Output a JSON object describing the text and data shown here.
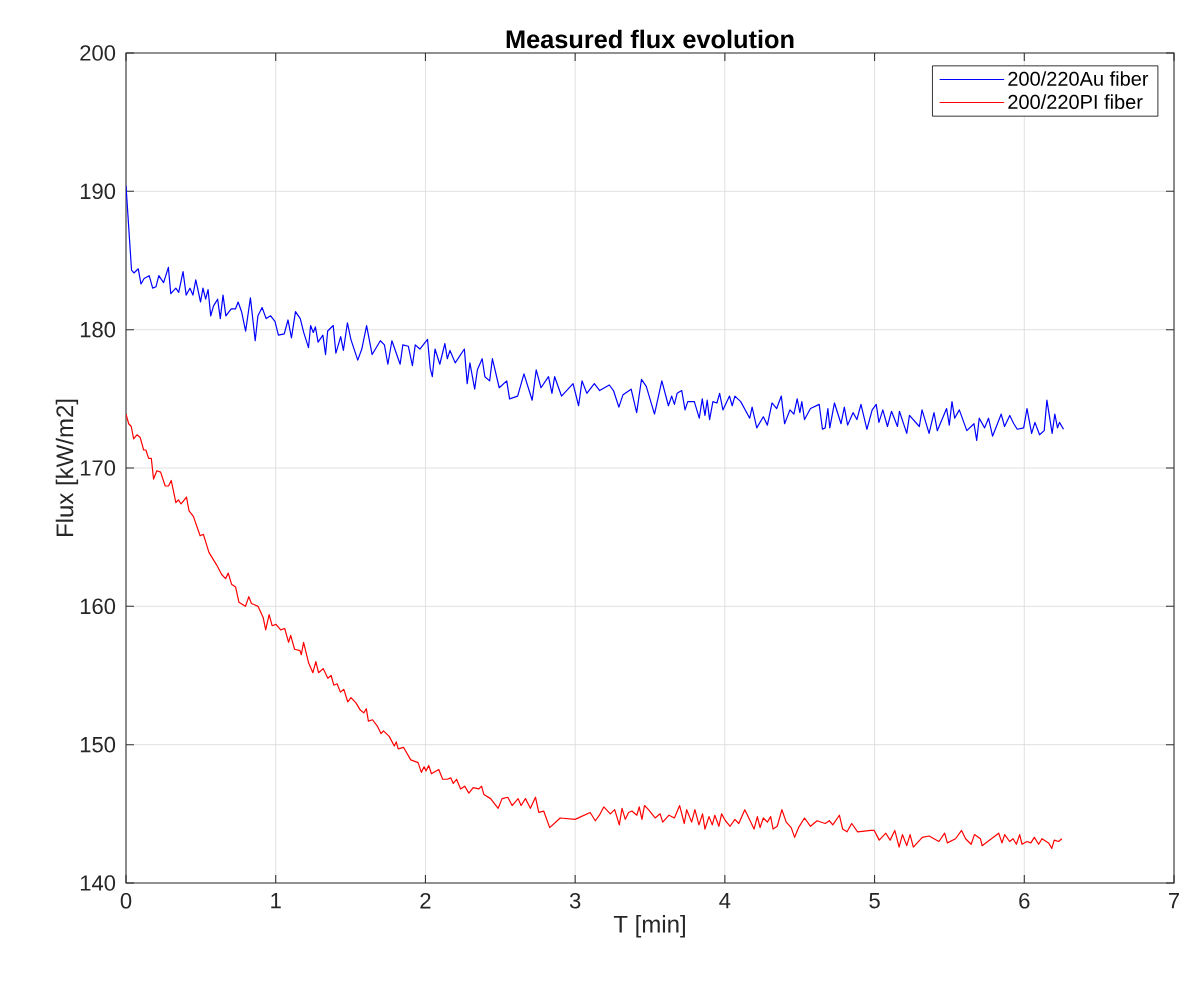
{
  "chart_data": {
    "type": "line",
    "title": "Measured flux evolution",
    "xlabel": "T [min]",
    "ylabel": "Flux [kW/m2]",
    "xlim": [
      0,
      7
    ],
    "xticks": [
      0,
      1,
      2,
      3,
      4,
      5,
      6,
      7
    ],
    "ylim": [
      140,
      200
    ],
    "yticks": [
      140,
      150,
      160,
      170,
      180,
      190,
      200
    ],
    "grid": true,
    "legend": "top right",
    "marker": "none",
    "line_style": "solid",
    "series": [
      {
        "name": "200/220Au fiber",
        "color": "#0000ff",
        "x": [
          0,
          0.037,
          0.053,
          0.082,
          0.1,
          0.121,
          0.155,
          0.178,
          0.2,
          0.219,
          0.251,
          0.283,
          0.299,
          0.333,
          0.352,
          0.381,
          0.402,
          0.427,
          0.447,
          0.466,
          0.498,
          0.514,
          0.532,
          0.548,
          0.566,
          0.584,
          0.612,
          0.63,
          0.648,
          0.667,
          0.703,
          0.731,
          0.749,
          0.772,
          0.799,
          0.831,
          0.863,
          0.881,
          0.909,
          0.936,
          0.966,
          0.995,
          1.018,
          1.057,
          1.082,
          1.105,
          1.132,
          1.164,
          1.187,
          1.219,
          1.233,
          1.251,
          1.265,
          1.283,
          1.315,
          1.333,
          1.347,
          1.384,
          1.402,
          1.434,
          1.452,
          1.479,
          1.502,
          1.548,
          1.575,
          1.607,
          1.644,
          1.699,
          1.726,
          1.749,
          1.776,
          1.831,
          1.849,
          1.886,
          1.913,
          1.932,
          1.963,
          2.014,
          2.032,
          2.046,
          2.064,
          2.096,
          2.13,
          2.146,
          2.164,
          2.199,
          2.26,
          2.279,
          2.297,
          2.329,
          2.347,
          2.379,
          2.397,
          2.429,
          2.447,
          2.493,
          2.543,
          2.562,
          2.616,
          2.658,
          2.713,
          2.74,
          2.772,
          2.822,
          2.845,
          2.863,
          2.909,
          2.986,
          3.023,
          3.046,
          3.078,
          3.128,
          3.164,
          3.228,
          3.256,
          3.292,
          3.32,
          3.374,
          3.411,
          3.443,
          3.475,
          3.53,
          3.579,
          3.623,
          3.645,
          3.663,
          3.681,
          3.712,
          3.734,
          3.752,
          3.796,
          3.829,
          3.849,
          3.867,
          3.882,
          3.898,
          3.92,
          3.947,
          3.965,
          3.987,
          4.031,
          4.049,
          4.067,
          4.106,
          4.166,
          4.182,
          4.213,
          4.257,
          4.284,
          4.315,
          4.346,
          4.377,
          4.399,
          4.435,
          4.461,
          4.483,
          4.501,
          4.514,
          4.532,
          4.572,
          4.63,
          4.652,
          4.67,
          4.688,
          4.701,
          4.732,
          4.776,
          4.798,
          4.82,
          4.856,
          4.882,
          4.909,
          4.949,
          4.984,
          5.011,
          5.029,
          5.055,
          5.086,
          5.113,
          5.153,
          5.166,
          5.215,
          5.233,
          5.299,
          5.317,
          5.364,
          5.397,
          5.419,
          5.481,
          5.499,
          5.517,
          5.535,
          5.566,
          5.616,
          5.664,
          5.682,
          5.699,
          5.735,
          5.761,
          5.788,
          5.846,
          5.868,
          5.903,
          5.93,
          5.953,
          5.996,
          6.018,
          6.049,
          6.071,
          6.102,
          6.133,
          6.151,
          6.186,
          6.204,
          6.222,
          6.235,
          6.262
        ],
        "values": [
          190.4,
          184.3,
          184.1,
          184.4,
          183.3,
          183.7,
          183.9,
          183.0,
          183.1,
          183.9,
          183.4,
          184.5,
          182.6,
          183.0,
          182.7,
          184.2,
          182.5,
          183.0,
          182.5,
          183.6,
          182.0,
          183.0,
          182.2,
          182.9,
          181.0,
          181.7,
          182.2,
          180.8,
          182.5,
          181.0,
          181.5,
          181.5,
          182.0,
          181.3,
          179.9,
          182.3,
          179.2,
          181.0,
          181.6,
          180.8,
          181.0,
          180.6,
          179.6,
          179.7,
          180.7,
          179.4,
          181.3,
          180.8,
          179.8,
          178.7,
          180.3,
          179.8,
          180.2,
          179.1,
          179.6,
          178.2,
          179.9,
          180.3,
          178.3,
          179.5,
          178.5,
          180.5,
          179.3,
          177.8,
          178.6,
          180.3,
          178.2,
          179.2,
          178.9,
          177.5,
          179.2,
          177.5,
          178.9,
          178.8,
          177.4,
          178.9,
          178.6,
          179.3,
          177.2,
          176.6,
          178.6,
          177.5,
          179.0,
          177.9,
          178.5,
          177.6,
          178.6,
          176.1,
          177.6,
          175.7,
          177.1,
          177.9,
          176.6,
          176.3,
          177.9,
          175.8,
          176.3,
          175.0,
          175.2,
          176.8,
          174.9,
          177.1,
          175.8,
          176.6,
          175.4,
          176.6,
          175.2,
          176.1,
          174.5,
          176.3,
          175.4,
          176.1,
          175.6,
          176.0,
          175.6,
          174.4,
          175.3,
          175.7,
          174.0,
          176.4,
          175.9,
          173.9,
          176.3,
          174.5,
          175.2,
          174.6,
          175.4,
          175.6,
          174.2,
          174.8,
          174.8,
          173.6,
          175.0,
          173.8,
          174.9,
          173.5,
          174.8,
          174.7,
          175.4,
          174.2,
          175.2,
          174.5,
          175.2,
          174.8,
          173.6,
          174.4,
          172.9,
          173.7,
          173.1,
          174.7,
          174.3,
          175.2,
          173.2,
          174.2,
          173.9,
          175.0,
          174.0,
          174.8,
          173.5,
          174.3,
          174.6,
          172.8,
          172.9,
          174.3,
          172.9,
          174.7,
          173.2,
          174.4,
          173.1,
          174.0,
          173.5,
          174.6,
          172.8,
          174.2,
          174.6,
          173.3,
          174.2,
          173.0,
          174.1,
          173.0,
          174.1,
          172.5,
          173.8,
          173.0,
          174.2,
          172.5,
          174.0,
          172.7,
          174.3,
          173.1,
          174.8,
          173.6,
          174.2,
          172.7,
          173.2,
          172.0,
          173.6,
          172.9,
          173.6,
          172.3,
          173.9,
          173.0,
          173.8,
          173.2,
          172.8,
          172.9,
          174.3,
          172.5,
          173.3,
          172.4,
          172.7,
          174.9,
          172.5,
          173.9,
          172.9,
          173.3,
          172.8
        ]
      },
      {
        "name": "200/220PI fiber",
        "color": "#ff0000",
        "x": [
          0,
          0.018,
          0.035,
          0.051,
          0.073,
          0.095,
          0.118,
          0.133,
          0.151,
          0.169,
          0.184,
          0.206,
          0.231,
          0.262,
          0.284,
          0.302,
          0.333,
          0.35,
          0.368,
          0.404,
          0.421,
          0.45,
          0.495,
          0.517,
          0.554,
          0.605,
          0.639,
          0.665,
          0.683,
          0.705,
          0.732,
          0.754,
          0.798,
          0.82,
          0.838,
          0.882,
          0.916,
          0.933,
          0.956,
          0.976,
          1.002,
          1.033,
          1.06,
          1.086,
          1.1,
          1.126,
          1.162,
          1.171,
          1.186,
          1.22,
          1.248,
          1.268,
          1.286,
          1.317,
          1.348,
          1.37,
          1.388,
          1.41,
          1.432,
          1.455,
          1.481,
          1.503,
          1.537,
          1.565,
          1.588,
          1.605,
          1.619,
          1.647,
          1.681,
          1.703,
          1.72,
          1.758,
          1.792,
          1.805,
          1.818,
          1.854,
          1.902,
          1.951,
          1.973,
          1.991,
          2.004,
          2.022,
          2.04,
          2.089,
          2.115,
          2.146,
          2.169,
          2.186,
          2.208,
          2.235,
          2.262,
          2.29,
          2.319,
          2.357,
          2.375,
          2.39,
          2.435,
          2.486,
          2.512,
          2.55,
          2.579,
          2.619,
          2.639,
          2.668,
          2.701,
          2.735,
          2.757,
          2.79,
          2.83,
          2.9,
          3.0,
          3.1,
          3.135,
          3.162,
          3.191,
          3.235,
          3.264,
          3.295,
          3.313,
          3.335,
          3.357,
          3.379,
          3.412,
          3.428,
          3.446,
          3.463,
          3.49,
          3.534,
          3.568,
          3.585,
          3.627,
          3.663,
          3.698,
          3.729,
          3.745,
          3.778,
          3.8,
          3.827,
          3.851,
          3.867,
          3.894,
          3.916,
          3.933,
          3.96,
          3.978,
          4.004,
          4.035,
          4.067,
          4.093,
          4.133,
          4.16,
          4.195,
          4.217,
          4.235,
          4.257,
          4.284,
          4.306,
          4.322,
          4.35,
          4.381,
          4.41,
          4.443,
          4.466,
          4.492,
          4.532,
          4.572,
          4.616,
          4.67,
          4.698,
          4.721,
          4.765,
          4.787,
          4.816,
          4.847,
          4.887,
          4.976,
          4.998,
          5.031,
          5.075,
          5.104,
          5.135,
          5.164,
          5.186,
          5.215,
          5.237,
          5.259,
          5.319,
          5.364,
          5.397,
          5.43,
          5.468,
          5.486,
          5.541,
          5.581,
          5.608,
          5.645,
          5.667,
          5.707,
          5.718,
          5.829,
          5.851,
          5.869,
          5.902,
          5.925,
          5.947,
          5.969,
          5.985,
          6.018,
          6.044,
          6.067,
          6.096,
          6.118,
          6.162,
          6.184,
          6.2,
          6.229,
          6.251
        ],
        "values": [
          173.9,
          173.2,
          173.0,
          172.1,
          172.4,
          172.2,
          171.3,
          171.3,
          170.7,
          170.7,
          169.2,
          169.8,
          169.7,
          168.7,
          168.7,
          169.1,
          167.5,
          167.7,
          167.4,
          167.9,
          166.9,
          166.5,
          165.1,
          165.2,
          163.9,
          163.0,
          162.3,
          162.0,
          162.4,
          161.6,
          161.4,
          160.3,
          160.0,
          160.7,
          160.2,
          160.0,
          159.2,
          158.3,
          159.4,
          158.6,
          158.7,
          158.3,
          158.4,
          157.4,
          157.9,
          156.9,
          156.8,
          156.5,
          157.4,
          155.9,
          155.2,
          156.0,
          155.2,
          155.5,
          154.8,
          155.0,
          154.3,
          154.4,
          153.8,
          154.0,
          153.1,
          153.4,
          153.0,
          152.5,
          152.3,
          152.6,
          151.7,
          151.8,
          151.3,
          150.8,
          151.0,
          150.6,
          149.9,
          150.2,
          149.7,
          149.8,
          148.9,
          148.7,
          148.0,
          148.4,
          148.1,
          148.5,
          147.9,
          148.2,
          147.5,
          147.5,
          147.6,
          147.2,
          147.5,
          146.8,
          147.0,
          146.5,
          146.9,
          146.8,
          147.0,
          146.4,
          146.1,
          145.4,
          146.1,
          146.2,
          145.6,
          146.1,
          145.6,
          146.1,
          145.4,
          146.2,
          145.1,
          145.2,
          144.0,
          144.7,
          144.6,
          145.1,
          144.5,
          144.9,
          145.5,
          145.0,
          145.3,
          144.2,
          145.4,
          144.6,
          145.1,
          145.2,
          144.9,
          145.5,
          144.6,
          145.6,
          145.3,
          144.7,
          145.0,
          144.4,
          144.9,
          144.7,
          145.6,
          144.3,
          145.3,
          144.4,
          145.3,
          144.2,
          145.0,
          143.9,
          144.8,
          144.2,
          144.9,
          144.1,
          145.0,
          144.5,
          144.1,
          144.6,
          144.3,
          145.3,
          144.7,
          143.9,
          144.8,
          144.0,
          144.7,
          144.4,
          144.8,
          143.9,
          144.1,
          145.3,
          144.4,
          144.0,
          143.3,
          144.0,
          144.7,
          144.1,
          144.5,
          144.3,
          144.5,
          144.2,
          144.9,
          143.9,
          143.7,
          144.3,
          143.7,
          143.8,
          143.8,
          143.1,
          143.6,
          143.1,
          143.8,
          142.6,
          143.5,
          142.7,
          143.5,
          142.6,
          143.3,
          143.4,
          143.2,
          143.0,
          143.6,
          142.9,
          143.2,
          143.8,
          143.2,
          142.8,
          143.5,
          143.2,
          142.7,
          143.6,
          142.9,
          143.5,
          143.0,
          143.2,
          142.8,
          143.5,
          142.8,
          143.0,
          142.9,
          143.3,
          142.8,
          143.2,
          142.9,
          142.5,
          143.1,
          143.0,
          143.2
        ]
      }
    ]
  }
}
